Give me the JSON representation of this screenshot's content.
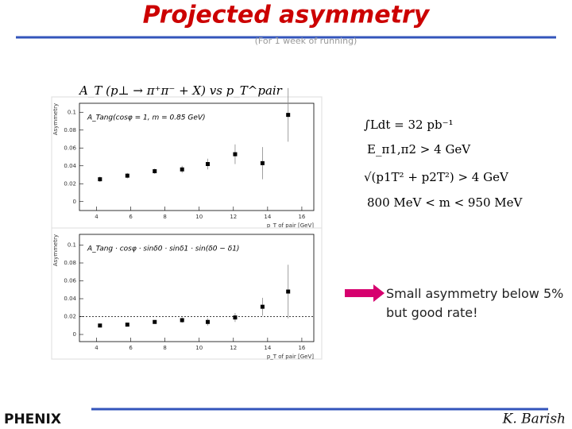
{
  "title": "Projected asymmetry",
  "subtitle": "(For 1 week of running)",
  "heading": "A_T (p⊥ → π⁺π⁻ + X)  vs  p_T^pair",
  "cuts": [
    "∫Ldt = 32 pb⁻¹",
    "E_π1,π2 > 4 GeV",
    "√(p1T² + p2T²) > 4 GeV",
    "800 MeV < m < 950 MeV"
  ],
  "note": "Small asymmetry below 5% but good rate!",
  "footer": {
    "logo": "PHENIX",
    "author": "K. Barish"
  },
  "chart_data": [
    {
      "type": "scatter",
      "annotation": "A_Tang(cosφ = 1, m = 0.85 GeV)",
      "y_label": "Asymmetry",
      "x_label": "p_T of pair [GeV]",
      "x": [
        4.2,
        5.8,
        7.4,
        9.0,
        10.5,
        12.1,
        13.7,
        15.2
      ],
      "values": [
        0.025,
        0.029,
        0.034,
        0.036,
        0.042,
        0.053,
        0.043,
        0.097
      ],
      "errors": [
        0.003,
        0.003,
        0.003,
        0.004,
        0.006,
        0.011,
        0.018,
        0.03
      ],
      "color": "#000000",
      "xlim": [
        3,
        16.7
      ],
      "ylim": [
        -0.01,
        0.11
      ],
      "xticks": [
        4,
        6,
        8,
        10,
        12,
        14,
        16
      ],
      "yticks": [
        0,
        0.02,
        0.04,
        0.06,
        0.08,
        0.1
      ]
    },
    {
      "type": "scatter",
      "annotation": "A_Tang · cosφ · sinδ0 · sinδ1 · sin(δ0 − δ1)",
      "y_label": "Asymmetry",
      "x_label": "p_T of pair [GeV]",
      "x": [
        4.2,
        5.8,
        7.4,
        9.0,
        10.5,
        12.1,
        13.7,
        15.2
      ],
      "values": [
        0.01,
        0.011,
        0.014,
        0.016,
        0.014,
        0.019,
        0.031,
        0.048
      ],
      "errors": [
        0.002,
        0.002,
        0.002,
        0.003,
        0.004,
        0.005,
        0.01,
        0.03
      ],
      "color": "#000000",
      "ref_line": 0.02,
      "xlim": [
        3,
        16.7
      ],
      "ylim": [
        -0.008,
        0.112
      ],
      "xticks": [
        4,
        6,
        8,
        10,
        12,
        14,
        16
      ],
      "yticks": [
        0,
        0.02,
        0.04,
        0.06,
        0.08,
        0.1
      ]
    }
  ]
}
